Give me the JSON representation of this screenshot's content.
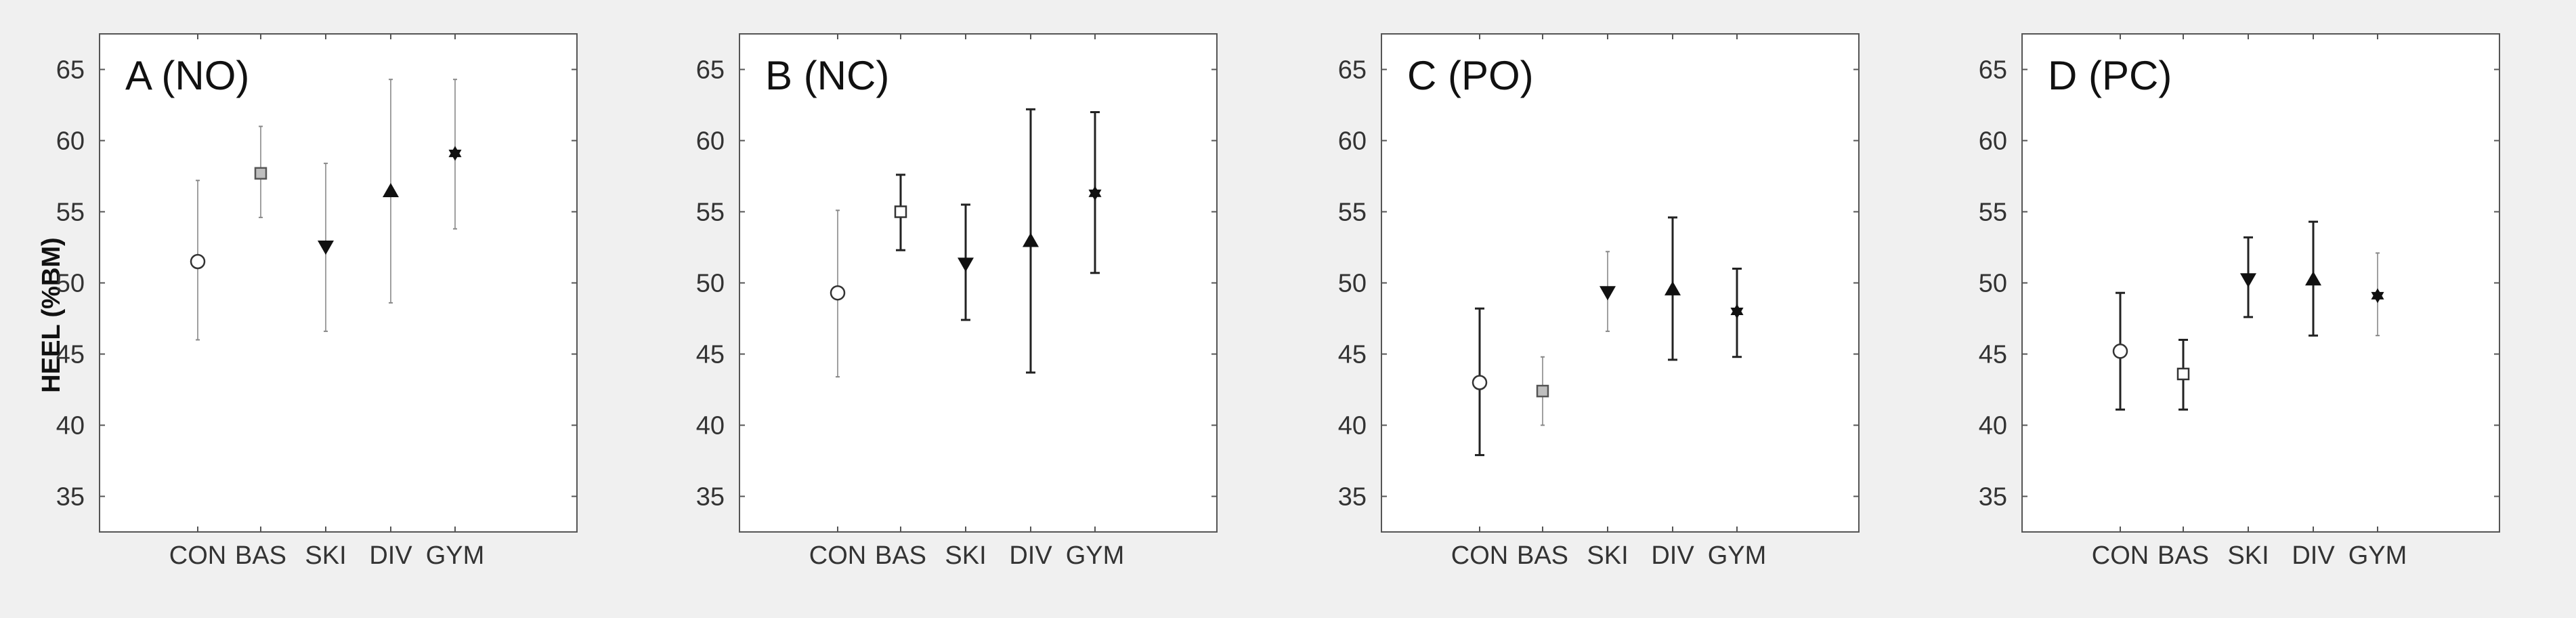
{
  "figure": {
    "ylabel": "HEEL (%BM)"
  },
  "colors": {
    "figure_bg": "#f0f0f0",
    "panel_bg": "#ffffff",
    "axis": "#555555",
    "text": "#333333",
    "dark_marker": "#111111",
    "error_thin": "#888888",
    "error_thick": "#222222"
  },
  "chart_data": [
    {
      "type": "errorbar",
      "title": "A (NO)",
      "ylabel": "HEEL (%BM)",
      "categories": [
        "CON",
        "BAS",
        "SKI",
        "DIV",
        "GYM"
      ],
      "markers": [
        "circle-open",
        "square-gray",
        "triangle-down",
        "triangle-up",
        "hexagram"
      ],
      "means": [
        51.5,
        57.7,
        52.5,
        56.5,
        59.1
      ],
      "lower": [
        46.0,
        54.6,
        46.6,
        48.6,
        53.8
      ],
      "upper": [
        57.2,
        61.0,
        58.4,
        64.3,
        64.3
      ],
      "error_style": [
        "thin",
        "thin",
        "thin",
        "thin",
        "thin"
      ],
      "yticks": [
        "35",
        "40",
        "45",
        "50",
        "55",
        "60",
        "65"
      ],
      "ylim": [
        32.5,
        67.5
      ]
    },
    {
      "type": "errorbar",
      "title": "B (NC)",
      "ylabel": "",
      "categories": [
        "CON",
        "BAS",
        "SKI",
        "DIV",
        "GYM"
      ],
      "markers": [
        "circle-open",
        "square-open",
        "triangle-down",
        "triangle-up",
        "hexagram"
      ],
      "means": [
        49.3,
        55.0,
        51.3,
        53.0,
        56.3
      ],
      "lower": [
        43.4,
        52.3,
        47.4,
        43.7,
        50.7
      ],
      "upper": [
        55.1,
        57.6,
        55.5,
        62.2,
        62.0
      ],
      "error_style": [
        "thin",
        "thick",
        "thick",
        "thick",
        "thick"
      ],
      "yticks": [
        "35",
        "40",
        "45",
        "50",
        "55",
        "60",
        "65"
      ],
      "ylim": [
        32.5,
        67.5
      ]
    },
    {
      "type": "errorbar",
      "title": "C (PO)",
      "ylabel": "",
      "categories": [
        "CON",
        "BAS",
        "SKI",
        "DIV",
        "GYM"
      ],
      "markers": [
        "circle-open",
        "square-gray",
        "triangle-down",
        "triangle-up",
        "hexagram"
      ],
      "means": [
        43.0,
        42.4,
        49.3,
        49.6,
        48.0
      ],
      "lower": [
        37.9,
        40.0,
        46.6,
        44.6,
        44.8
      ],
      "upper": [
        48.2,
        44.8,
        52.2,
        54.6,
        51.0
      ],
      "error_style": [
        "thick",
        "thin",
        "thin",
        "thick",
        "thick"
      ],
      "yticks": [
        "35",
        "40",
        "45",
        "50",
        "55",
        "60",
        "65"
      ],
      "ylim": [
        32.5,
        67.5
      ]
    },
    {
      "type": "errorbar",
      "title": "D (PC)",
      "ylabel": "",
      "categories": [
        "CON",
        "BAS",
        "SKI",
        "DIV",
        "GYM"
      ],
      "markers": [
        "circle-open",
        "square-open",
        "triangle-down",
        "triangle-up",
        "hexagram"
      ],
      "means": [
        45.2,
        43.6,
        50.2,
        50.3,
        49.1
      ],
      "lower": [
        41.1,
        41.1,
        47.6,
        46.3,
        46.3
      ],
      "upper": [
        49.3,
        46.0,
        53.2,
        54.3,
        52.1
      ],
      "error_style": [
        "thick",
        "thick",
        "thick",
        "thick",
        "thin"
      ],
      "yticks": [
        "35",
        "40",
        "45",
        "50",
        "55",
        "60",
        "65"
      ],
      "ylim": [
        32.5,
        67.5
      ]
    }
  ]
}
